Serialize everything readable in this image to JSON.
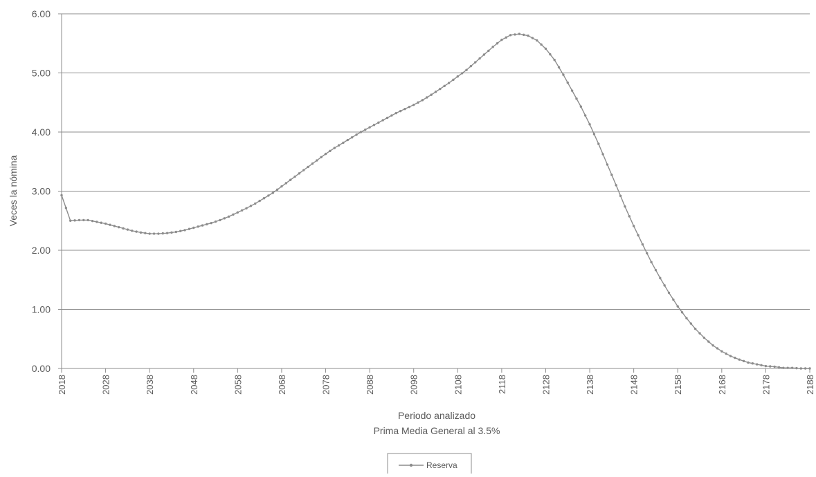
{
  "chart_data": {
    "type": "line",
    "xlabel": "Periodo analizado",
    "subtitle": "Prima Media General al 3.5%",
    "ylabel": "Veces la nómina",
    "xlim": [
      2018,
      2188
    ],
    "ylim": [
      0,
      6
    ],
    "x_ticks": [
      "2018",
      "2028",
      "2038",
      "2048",
      "2058",
      "2068",
      "2078",
      "2088",
      "2098",
      "2108",
      "2118",
      "2128",
      "2138",
      "2148",
      "2158",
      "2168",
      "2178",
      "2188"
    ],
    "y_ticks": [
      "0.00",
      "1.00",
      "2.00",
      "3.00",
      "4.00",
      "5.00",
      "6.00"
    ],
    "grid": "horizontal",
    "legend_position": "bottom",
    "series": [
      {
        "name": "Reserva",
        "color": "#8c8c8c",
        "marker": "dot",
        "points": [
          [
            2018,
            2.93
          ],
          [
            2020,
            2.5
          ],
          [
            2022,
            2.51
          ],
          [
            2024,
            2.51
          ],
          [
            2026,
            2.48
          ],
          [
            2028,
            2.45
          ],
          [
            2030,
            2.41
          ],
          [
            2032,
            2.37
          ],
          [
            2034,
            2.33
          ],
          [
            2036,
            2.3
          ],
          [
            2038,
            2.28
          ],
          [
            2040,
            2.28
          ],
          [
            2042,
            2.29
          ],
          [
            2044,
            2.31
          ],
          [
            2046,
            2.34
          ],
          [
            2048,
            2.38
          ],
          [
            2050,
            2.42
          ],
          [
            2052,
            2.46
          ],
          [
            2054,
            2.51
          ],
          [
            2056,
            2.57
          ],
          [
            2058,
            2.64
          ],
          [
            2060,
            2.71
          ],
          [
            2062,
            2.79
          ],
          [
            2064,
            2.88
          ],
          [
            2066,
            2.97
          ],
          [
            2068,
            3.08
          ],
          [
            2070,
            3.19
          ],
          [
            2072,
            3.3
          ],
          [
            2074,
            3.41
          ],
          [
            2076,
            3.52
          ],
          [
            2078,
            3.63
          ],
          [
            2080,
            3.73
          ],
          [
            2082,
            3.82
          ],
          [
            2084,
            3.91
          ],
          [
            2086,
            4.0
          ],
          [
            2088,
            4.08
          ],
          [
            2090,
            4.16
          ],
          [
            2092,
            4.24
          ],
          [
            2094,
            4.32
          ],
          [
            2096,
            4.39
          ],
          [
            2098,
            4.46
          ],
          [
            2100,
            4.54
          ],
          [
            2102,
            4.63
          ],
          [
            2104,
            4.73
          ],
          [
            2106,
            4.83
          ],
          [
            2108,
            4.94
          ],
          [
            2110,
            5.05
          ],
          [
            2112,
            5.18
          ],
          [
            2114,
            5.31
          ],
          [
            2116,
            5.44
          ],
          [
            2118,
            5.56
          ],
          [
            2120,
            5.64
          ],
          [
            2122,
            5.66
          ],
          [
            2124,
            5.63
          ],
          [
            2126,
            5.55
          ],
          [
            2128,
            5.41
          ],
          [
            2130,
            5.22
          ],
          [
            2132,
            4.97
          ],
          [
            2134,
            4.7
          ],
          [
            2136,
            4.43
          ],
          [
            2138,
            4.13
          ],
          [
            2140,
            3.8
          ],
          [
            2142,
            3.45
          ],
          [
            2144,
            3.1
          ],
          [
            2146,
            2.74
          ],
          [
            2148,
            2.41
          ],
          [
            2150,
            2.1
          ],
          [
            2152,
            1.8
          ],
          [
            2154,
            1.53
          ],
          [
            2156,
            1.28
          ],
          [
            2158,
            1.05
          ],
          [
            2160,
            0.85
          ],
          [
            2162,
            0.67
          ],
          [
            2164,
            0.52
          ],
          [
            2166,
            0.39
          ],
          [
            2168,
            0.29
          ],
          [
            2170,
            0.21
          ],
          [
            2172,
            0.15
          ],
          [
            2174,
            0.1
          ],
          [
            2176,
            0.07
          ],
          [
            2178,
            0.04
          ],
          [
            2180,
            0.03
          ],
          [
            2182,
            0.01
          ],
          [
            2184,
            0.01
          ],
          [
            2186,
            0.0
          ],
          [
            2188,
            0.0
          ]
        ]
      }
    ]
  }
}
